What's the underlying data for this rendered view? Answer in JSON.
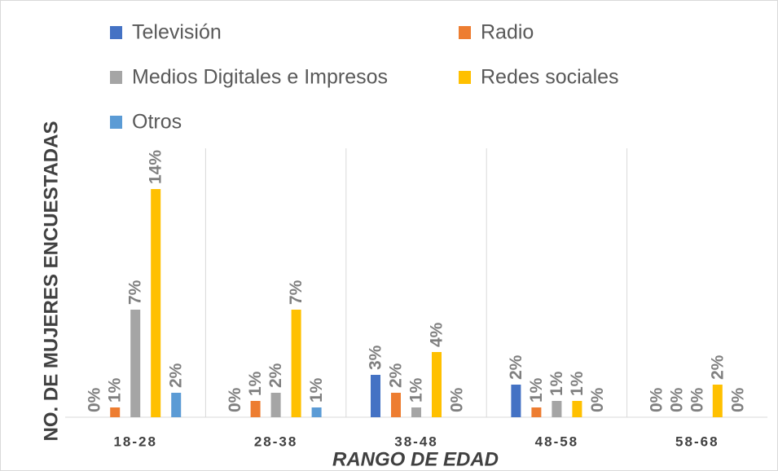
{
  "chart_data": {
    "type": "bar",
    "y_label": "NO. DE MUJERES ENCUESTADAS",
    "x_label": "RANGO DE EDAD",
    "categories": [
      "18-28",
      "28-38",
      "38-48",
      "48-58",
      "58-68"
    ],
    "series": [
      {
        "name": "Televisión",
        "color": "#4472c4",
        "values": [
          0,
          0,
          2.6,
          2.0,
          0
        ],
        "value_labels": [
          "0%",
          "0%",
          "3%",
          "2%",
          "0%"
        ]
      },
      {
        "name": "Radio",
        "color": "#ed7d31",
        "values": [
          0.6,
          1.0,
          1.5,
          0.6,
          0
        ],
        "value_labels": [
          "1%",
          "1%",
          "2%",
          "1%",
          "0%"
        ]
      },
      {
        "name": "Medios Digitales e Impresos",
        "color": "#a5a5a5",
        "values": [
          6.6,
          1.5,
          0.6,
          1.0,
          0
        ],
        "value_labels": [
          "7%",
          "2%",
          "1%",
          "1%",
          "0%"
        ]
      },
      {
        "name": "Redes sociales",
        "color": "#ffc000",
        "values": [
          14.0,
          6.6,
          4.0,
          1.0,
          2.0
        ],
        "value_labels": [
          "14%",
          "7%",
          "4%",
          "1%",
          "2%"
        ]
      },
      {
        "name": "Otros",
        "color": "#5b9bd5",
        "values": [
          1.5,
          0.6,
          0,
          0,
          0
        ],
        "value_labels": [
          "2%",
          "1%",
          "0%",
          "0%",
          "0%"
        ]
      }
    ],
    "ylim": [
      0,
      16
    ],
    "grid": true
  }
}
